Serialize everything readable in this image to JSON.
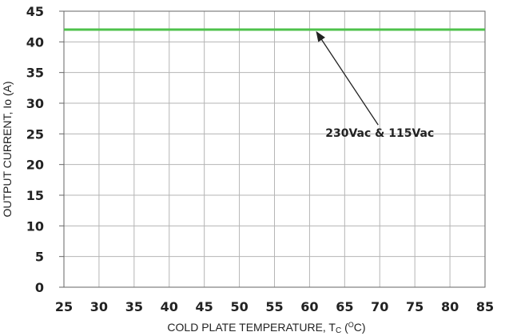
{
  "chart_data": {
    "type": "line",
    "title": "",
    "xlabel": "COLD PLATE TEMPERATURE, Tc (oC)",
    "xlabel_main": "COLD PLATE TEMPERATURE, T",
    "xlabel_sub": "C",
    "xlabel_tail_open": " (",
    "xlabel_sup": "O",
    "xlabel_tail_close": "C)",
    "ylabel": "OUTPUT CURRENT, Io (A)",
    "xlim": [
      25,
      85
    ],
    "ylim": [
      0,
      45
    ],
    "xticks": [
      25,
      30,
      35,
      40,
      45,
      50,
      55,
      60,
      65,
      70,
      75,
      80,
      85
    ],
    "yticks": [
      0,
      5,
      10,
      15,
      20,
      25,
      30,
      35,
      40,
      45
    ],
    "grid": true,
    "series": [
      {
        "name": "230Vac & 115Vac",
        "x": [
          25,
          85
        ],
        "y": [
          42,
          42
        ],
        "color": "#4ec24b"
      }
    ],
    "annotations": [
      {
        "text": "230Vac & 115Vac",
        "text_at": [
          70,
          24.5
        ],
        "points_to": [
          61,
          42
        ]
      }
    ]
  }
}
